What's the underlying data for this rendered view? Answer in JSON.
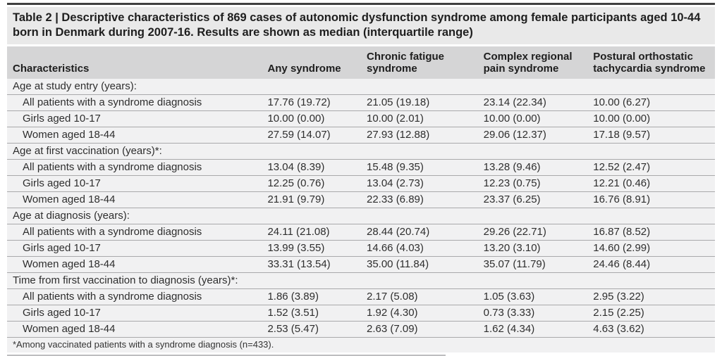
{
  "title": "Table 2 | Descriptive characteristics of 869 cases of autonomic dysfunction syndrome among female participants aged 10-44 born in Denmark during 2007-16. Results are shown as median (interquartile range)",
  "table": {
    "columns": [
      "Characteristics",
      "Any syndrome",
      "Chronic fatigue syndrome",
      "Complex regional pain syndrome",
      "Postural orthostatic tachycardia syndrome"
    ],
    "sections": [
      {
        "header": "Age at study entry (years):",
        "rows": [
          {
            "label": "All patients with a syndrome diagnosis",
            "values": [
              "17.76 (19.72)",
              "21.05 (19.18)",
              "23.14 (22.34)",
              "10.00 (6.27)"
            ]
          },
          {
            "label": "Girls aged 10-17",
            "values": [
              "10.00 (0.00)",
              "10.00 (2.01)",
              "10.00 (0.00)",
              "10.00 (0.00)"
            ]
          },
          {
            "label": "Women aged 18-44",
            "values": [
              "27.59 (14.07)",
              "27.93 (12.88)",
              "29.06 (12.37)",
              "17.18 (9.57)"
            ]
          }
        ]
      },
      {
        "header": "Age at first vaccination (years)*:",
        "rows": [
          {
            "label": "All patients with a syndrome diagnosis",
            "values": [
              "13.04 (8.39)",
              "15.48 (9.35)",
              "13.28 (9.46)",
              "12.52 (2.47)"
            ]
          },
          {
            "label": "Girls aged 10-17",
            "values": [
              "12.25 (0.76)",
              "13.04 (2.73)",
              "12.23 (0.75)",
              "12.21 (0.46)"
            ]
          },
          {
            "label": "Women aged 18-44",
            "values": [
              "21.91 (9.79)",
              "22.33 (6.89)",
              "23.37 (6.25)",
              "16.76 (8.91)"
            ]
          }
        ]
      },
      {
        "header": "Age at diagnosis (years):",
        "rows": [
          {
            "label": "All patients with a syndrome diagnosis",
            "values": [
              "24.11 (21.08)",
              "28.44 (20.74)",
              "29.26 (22.71)",
              "16.87 (8.52)"
            ]
          },
          {
            "label": "Girls aged 10-17",
            "values": [
              "13.99 (3.55)",
              "14.66 (4.03)",
              "13.20 (3.10)",
              "14.60 (2.99)"
            ]
          },
          {
            "label": "Women aged 18-44",
            "values": [
              "33.31 (13.54)",
              "35.00 (11.84)",
              "35.07 (11.79)",
              "24.46 (8.44)"
            ]
          }
        ]
      },
      {
        "header": "Time from first vaccination to diagnosis (years)*:",
        "rows": [
          {
            "label": "All patients with a syndrome diagnosis",
            "values": [
              "1.86 (3.89)",
              "2.17 (5.08)",
              "1.05 (3.63)",
              "2.95 (3.22)"
            ]
          },
          {
            "label": "Girls aged 10-17",
            "values": [
              "1.52 (3.51)",
              "1.92 (4.30)",
              "0.73 (3.33)",
              "2.15 (2.25)"
            ]
          },
          {
            "label": "Women aged 18-44",
            "values": [
              "2.53 (5.47)",
              "2.63 (7.09)",
              "1.62 (4.34)",
              "4.63 (3.62)"
            ]
          }
        ]
      }
    ],
    "footnote": "*Among vaccinated patients with a syndrome diagnosis (n=433)."
  },
  "colors": {
    "title_bg": "#e9e9e9",
    "header_bg": "#d5d5d6",
    "body_bg": "#f1f1f2",
    "row_line": "#a9a9ab",
    "rule_dark": "#404040"
  }
}
